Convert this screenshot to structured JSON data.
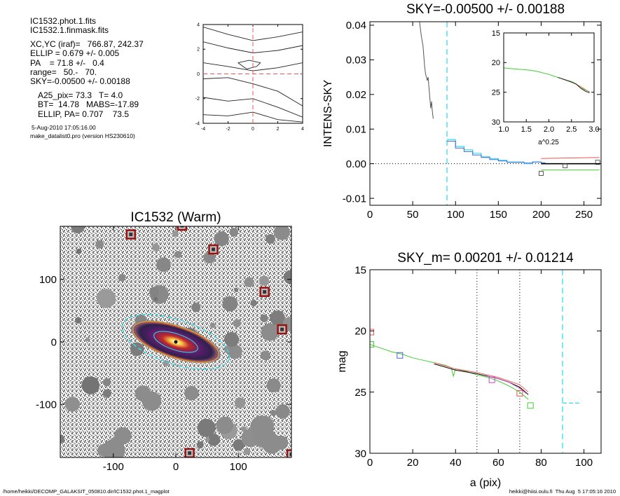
{
  "info": {
    "filename1": "IC1532.phot.1.fits",
    "filename2": "IC1532.1.finmask.fits",
    "xcyc": "XC,YC (iraf)=   766.87, 242.37",
    "ellip": "ELLIP = 0.679 +/- 0.005",
    "pa": "PA    = 71.8 +/-   0.4",
    "range": "range=   50.-   70.",
    "sky": "SKY=-0.00500 +/- 0.00188",
    "a25": "A25_pix= 73.3   T= 4.0",
    "bt": "BT=  14.78   MABS=-17.89",
    "ellip_pa": "ELLIP, PA= 0.707    73.5",
    "date": "5-Aug-2010 17:05:16.00",
    "program": "make_datalist0.pro (version HS230610)"
  },
  "footer": {
    "path": "/home/heikki/DECOMP_GALAKSIT_050810.dir/IC1532.phot.1_magplot",
    "user": "heikki@hiisi.oulu.fi  Thu Aug  5 17:05:16 2010"
  },
  "colors": {
    "cyan": "#33ddee",
    "red": "#ee5555",
    "green": "#44cc33",
    "blue": "#4466dd",
    "magenta": "#cc44cc",
    "black": "#000000",
    "gray": "#555555"
  },
  "chart_data": [
    {
      "id": "contour",
      "type": "line",
      "xlim": [
        -4,
        4
      ],
      "ylim": [
        -4,
        4
      ],
      "xticks": [
        "-4",
        "-2",
        "0",
        "2",
        "4"
      ],
      "yticks": [
        "-4",
        "-2",
        "0",
        "2",
        "4"
      ],
      "crosshair": {
        "x": 0,
        "y": 0
      },
      "contours": [
        [
          [
            -4,
            3.8
          ],
          [
            -2,
            3.2
          ],
          [
            0,
            2.7
          ],
          [
            2,
            3.0
          ],
          [
            4,
            3.4
          ]
        ],
        [
          [
            -4,
            2.6
          ],
          [
            -2,
            2.1
          ],
          [
            0,
            1.7
          ],
          [
            2,
            1.9
          ],
          [
            4,
            2.3
          ]
        ],
        [
          [
            -4,
            0.9
          ],
          [
            -2,
            0.6
          ],
          [
            0,
            0.25
          ],
          [
            2,
            0.5
          ],
          [
            4,
            0.9
          ]
        ],
        [
          [
            -4,
            -0.4
          ],
          [
            -2,
            -0.3
          ],
          [
            0,
            -0.8
          ],
          [
            2,
            -1.4
          ],
          [
            4,
            -2.6
          ]
        ],
        [
          [
            -4,
            -1.9
          ],
          [
            -2,
            -2.2
          ],
          [
            0,
            -2.0
          ],
          [
            2,
            -2.7
          ],
          [
            4,
            -3.5
          ]
        ],
        [
          [
            -4,
            -3.3
          ],
          [
            -2,
            -3.4
          ],
          [
            0,
            -3.1
          ],
          [
            2,
            -3.7
          ],
          [
            4,
            -3.9
          ]
        ]
      ],
      "center_loop": [
        [
          -1.2,
          0.9
        ],
        [
          -0.3,
          1.1
        ],
        [
          0.6,
          0.9
        ],
        [
          0.3,
          0.6
        ],
        [
          -0.5,
          0.4
        ],
        [
          -1.2,
          0.9
        ]
      ]
    },
    {
      "id": "sky",
      "type": "line",
      "title": "SKY=-0.00500 +/- 0.00188",
      "ylabel": "INTENS-SKY",
      "xlim": [
        0,
        270
      ],
      "ylim": [
        -0.012,
        0.041
      ],
      "xticks": [
        "0",
        "50",
        "100",
        "150",
        "200",
        "250"
      ],
      "yticks": [
        "-0.01",
        "0.00",
        "0.01",
        "0.02",
        "0.03",
        "0.04"
      ],
      "vline_x": 90,
      "zero_line": 0,
      "profile_black": [
        [
          58,
          0.041
        ],
        [
          60,
          0.037
        ],
        [
          62,
          0.034
        ],
        [
          63,
          0.031
        ],
        [
          64,
          0.028
        ],
        [
          65,
          0.026
        ],
        [
          67,
          0.024
        ],
        [
          68,
          0.025
        ],
        [
          69,
          0.022
        ],
        [
          70,
          0.019
        ],
        [
          71,
          0.016
        ],
        [
          72,
          0.018
        ],
        [
          73,
          0.015
        ],
        [
          74,
          0.013
        ]
      ],
      "steps_cyan": [
        [
          90,
          0.007
        ],
        [
          100,
          0.005
        ],
        [
          110,
          0.004
        ],
        [
          120,
          0.003
        ],
        [
          130,
          0.002
        ],
        [
          140,
          0.0015
        ],
        [
          150,
          0.001
        ],
        [
          160,
          0.0005
        ],
        [
          170,
          0.0005
        ],
        [
          180,
          0.0
        ],
        [
          190,
          0.0005
        ],
        [
          200,
          0.0
        ]
      ],
      "steps_blue": [
        [
          90,
          0.0065
        ],
        [
          100,
          0.0045
        ],
        [
          110,
          0.0035
        ],
        [
          120,
          0.0025
        ],
        [
          130,
          0.0018
        ],
        [
          140,
          0.0012
        ],
        [
          150,
          0.0008
        ],
        [
          160,
          0.0004
        ],
        [
          170,
          0.0004
        ],
        [
          180,
          0.0002
        ],
        [
          190,
          0.0005
        ],
        [
          200,
          0.0003
        ]
      ],
      "tail_red": [
        [
          200,
          0.0015
        ],
        [
          268,
          0.0018
        ]
      ],
      "tail_black": [
        [
          200,
          0.0
        ],
        [
          268,
          0.0
        ]
      ],
      "tail_green": [
        [
          200,
          -0.0018
        ],
        [
          268,
          -0.0018
        ]
      ],
      "squares": [
        [
          200,
          -0.0028
        ],
        [
          228,
          -0.0006
        ],
        [
          266,
          0.0004
        ]
      ],
      "inset": {
        "xlabel": "a^0.25",
        "xlim": [
          1.0,
          3.0
        ],
        "ylim": [
          30,
          15
        ],
        "xticks": [
          "1.0",
          "1.5",
          "2.0",
          "2.5",
          "3.0"
        ],
        "yticks": [
          "15",
          "20",
          "25",
          "30"
        ],
        "curve_green": [
          [
            1.0,
            20.9
          ],
          [
            1.3,
            21.1
          ],
          [
            1.6,
            21.3
          ],
          [
            1.8,
            21.6
          ],
          [
            2.0,
            22.0
          ],
          [
            2.2,
            22.5
          ],
          [
            2.4,
            23.0
          ],
          [
            2.5,
            23.2
          ],
          [
            2.6,
            23.6
          ],
          [
            2.7,
            24.2
          ],
          [
            2.8,
            24.6
          ],
          [
            2.9,
            24.9
          ]
        ],
        "curve_black": [
          [
            2.2,
            22.5
          ],
          [
            2.4,
            23.0
          ],
          [
            2.6,
            23.6
          ],
          [
            2.7,
            24.3
          ],
          [
            2.8,
            24.8
          ],
          [
            2.9,
            25.1
          ]
        ],
        "curve_red": [
          [
            2.3,
            22.8
          ],
          [
            2.5,
            23.3
          ],
          [
            2.7,
            24.0
          ],
          [
            2.8,
            24.5
          ],
          [
            2.9,
            25.0
          ]
        ]
      }
    },
    {
      "id": "image",
      "type": "heatmap",
      "title": "IC1532 (Warm)",
      "xlim": [
        -185,
        185
      ],
      "ylim": [
        -185,
        185
      ],
      "xticks": [
        "-100",
        "0",
        "100"
      ],
      "yticks": [
        "-100",
        "0",
        "100"
      ],
      "galaxy": {
        "x": 0,
        "y": 0,
        "a": 73.3,
        "ellip": 0.679,
        "pa_deg": 71.8
      },
      "masked_stars": [
        [
          -72,
          172
        ],
        [
          10,
          186
        ],
        [
          60,
          148
        ],
        [
          142,
          80
        ],
        [
          170,
          20
        ],
        [
          22,
          -178
        ],
        [
          185,
          -180
        ]
      ]
    },
    {
      "id": "mag",
      "type": "line",
      "title": "SKY_m=  0.00201 +/- 0.01214",
      "xlabel": "a (pix)",
      "ylabel": "mag",
      "xlim": [
        0,
        108
      ],
      "ylim": [
        30,
        15
      ],
      "xticks": [
        "0",
        "20",
        "40",
        "60",
        "80",
        "100"
      ],
      "yticks": [
        "15",
        "20",
        "25",
        "30"
      ],
      "vlines_dotted": [
        50,
        70
      ],
      "vline_dashed": 90,
      "profile_green": [
        [
          0,
          21.1
        ],
        [
          5,
          21.4
        ],
        [
          10,
          21.7
        ],
        [
          15,
          21.9
        ],
        [
          20,
          22.2
        ],
        [
          25,
          22.4
        ],
        [
          30,
          22.6
        ],
        [
          35,
          22.8
        ],
        [
          38,
          23.0
        ],
        [
          39,
          23.7
        ],
        [
          40,
          23.1
        ],
        [
          45,
          23.3
        ],
        [
          50,
          23.6
        ],
        [
          55,
          23.8
        ],
        [
          60,
          24.1
        ],
        [
          65,
          24.5
        ],
        [
          68,
          24.8
        ],
        [
          70,
          25.0
        ],
        [
          72,
          25.3
        ],
        [
          74,
          25.6
        ]
      ],
      "profile_black": [
        [
          30,
          22.7
        ],
        [
          40,
          23.2
        ],
        [
          50,
          23.5
        ],
        [
          55,
          23.7
        ],
        [
          60,
          23.9
        ],
        [
          65,
          24.2
        ],
        [
          70,
          24.6
        ],
        [
          74,
          25.2
        ]
      ],
      "profile_red": [
        [
          30,
          22.6
        ],
        [
          40,
          23.1
        ],
        [
          50,
          23.4
        ],
        [
          55,
          23.6
        ],
        [
          60,
          23.8
        ],
        [
          65,
          24.1
        ],
        [
          70,
          24.4
        ],
        [
          74,
          25.0
        ]
      ],
      "profile_magenta": [
        [
          55,
          23.7
        ],
        [
          60,
          23.9
        ],
        [
          65,
          24.2
        ],
        [
          70,
          24.7
        ],
        [
          73,
          25.1
        ]
      ],
      "sky_dash": [
        [
          90,
          25.9
        ],
        [
          98,
          25.9
        ]
      ],
      "markers": [
        {
          "x": 0.5,
          "y": 20.1,
          "color": "red"
        },
        {
          "x": 0.5,
          "y": 21.1,
          "color": "green"
        },
        {
          "x": 14,
          "y": 22.0,
          "color": "blue"
        },
        {
          "x": 57,
          "y": 24.0,
          "color": "magenta"
        },
        {
          "x": 75,
          "y": 26.1,
          "color": "green"
        },
        {
          "x": 70,
          "y": 25.1,
          "color": "red"
        }
      ]
    }
  ]
}
